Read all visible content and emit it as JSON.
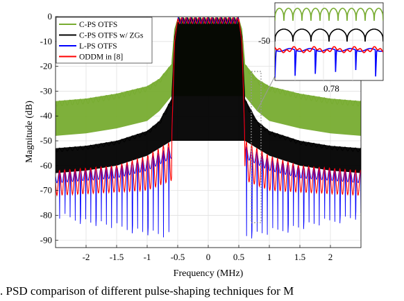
{
  "chart_data": {
    "type": "line",
    "xlabel": "Frequency (MHz)",
    "ylabel": "Magnitude (dB)",
    "xlim": [
      -2.5,
      2.5
    ],
    "ylim": [
      -93,
      0
    ],
    "x_ticks": [
      -2,
      -1.5,
      -1,
      -0.5,
      0,
      0.5,
      1,
      1.5,
      2
    ],
    "x_tick_labels": [
      "-2",
      "-1.5",
      "-1",
      "-0.5",
      "0",
      "0.5",
      "1",
      "1.5",
      "2"
    ],
    "y_ticks": [
      0,
      -10,
      -20,
      -30,
      -40,
      -50,
      -60,
      -70,
      -80,
      -90
    ],
    "y_tick_labels": [
      "0",
      "-10",
      "-20",
      "-30",
      "-40",
      "-50",
      "-60",
      "-70",
      "-80",
      "-90"
    ],
    "grid": true,
    "legend_position": "top-left",
    "series": [
      {
        "name": "C-PS OTFS",
        "color": "#77ac30",
        "points": [
          [
            -2.5,
            -34
          ],
          [
            -2,
            -33
          ],
          [
            -1.5,
            -31
          ],
          [
            -1,
            -28
          ],
          [
            -0.8,
            -25
          ],
          [
            -0.6,
            -19
          ],
          [
            -0.55,
            -5
          ],
          [
            -0.5,
            -1
          ],
          [
            0,
            -1
          ],
          [
            0.5,
            -1
          ],
          [
            0.55,
            -5
          ],
          [
            0.6,
            -19
          ],
          [
            0.8,
            -25
          ],
          [
            1,
            -28
          ],
          [
            1.5,
            -31
          ],
          [
            2,
            -33
          ],
          [
            2.5,
            -34
          ]
        ],
        "lower_points": [
          [
            -2.5,
            -48
          ],
          [
            -2,
            -47
          ],
          [
            -1.5,
            -45
          ],
          [
            -1,
            -42
          ],
          [
            -0.8,
            -38
          ],
          [
            -0.6,
            -32
          ],
          [
            0.6,
            -32
          ],
          [
            0.8,
            -38
          ],
          [
            1,
            -42
          ],
          [
            1.5,
            -45
          ],
          [
            2,
            -47
          ],
          [
            2.5,
            -48
          ]
        ]
      },
      {
        "name": "C-PS OTFS w/ ZGs",
        "color": "#000000",
        "points": [
          [
            -2.5,
            -53
          ],
          [
            -2,
            -52
          ],
          [
            -1.5,
            -50
          ],
          [
            -1,
            -46
          ],
          [
            -0.8,
            -42
          ],
          [
            -0.6,
            -33
          ],
          [
            -0.55,
            -8
          ],
          [
            -0.5,
            -1
          ],
          [
            0.5,
            -1
          ],
          [
            0.55,
            -8
          ],
          [
            0.6,
            -33
          ],
          [
            0.8,
            -42
          ],
          [
            1,
            -46
          ],
          [
            1.5,
            -50
          ],
          [
            2,
            -52
          ],
          [
            2.5,
            -53
          ]
        ],
        "lower_points": [
          [
            -2.5,
            -63
          ],
          [
            -2,
            -62
          ],
          [
            -1.5,
            -60
          ],
          [
            -1,
            -56
          ],
          [
            -0.6,
            -50
          ],
          [
            0.6,
            -50
          ],
          [
            1,
            -56
          ],
          [
            1.5,
            -60
          ],
          [
            2,
            -62
          ],
          [
            2.5,
            -63
          ]
        ]
      },
      {
        "name": "L-PS OTFS",
        "color": "#0000ff",
        "points": [
          [
            -2.5,
            -62
          ],
          [
            -2,
            -61
          ],
          [
            -1.5,
            -60
          ],
          [
            -1,
            -57
          ],
          [
            -0.6,
            -52
          ],
          [
            -0.55,
            -10
          ],
          [
            -0.5,
            -1
          ],
          [
            0.5,
            -1
          ],
          [
            0.55,
            -10
          ],
          [
            0.6,
            -52
          ],
          [
            1,
            -57
          ],
          [
            1.5,
            -60
          ],
          [
            2,
            -61
          ],
          [
            2.5,
            -62
          ]
        ],
        "null_depth": [
          [
            -2.5,
            -82
          ],
          [
            -0.7,
            -90
          ],
          [
            0.7,
            -90
          ],
          [
            2.5,
            -82
          ]
        ]
      },
      {
        "name": "ODDM in [8]",
        "color": "#ff0000",
        "points": [
          [
            -2.5,
            -62
          ],
          [
            -2,
            -61
          ],
          [
            -1.5,
            -60
          ],
          [
            -1,
            -56
          ],
          [
            -0.6,
            -50
          ],
          [
            -0.55,
            -10
          ],
          [
            -0.5,
            -1
          ],
          [
            0.5,
            -1
          ],
          [
            0.55,
            -10
          ],
          [
            0.6,
            -50
          ],
          [
            1,
            -56
          ],
          [
            1.5,
            -60
          ],
          [
            2,
            -61
          ],
          [
            2.5,
            -62
          ]
        ],
        "lower_points": [
          [
            -2.5,
            -72
          ],
          [
            -1,
            -70
          ],
          [
            -0.6,
            -66
          ],
          [
            0.6,
            -66
          ],
          [
            1,
            -70
          ],
          [
            2.5,
            -72
          ]
        ]
      }
    ],
    "inset": {
      "y_tick_label": "-50",
      "x_tick_label": "0.78"
    }
  },
  "caption": ".   PSD comparison of different pulse-shaping techniques for M"
}
